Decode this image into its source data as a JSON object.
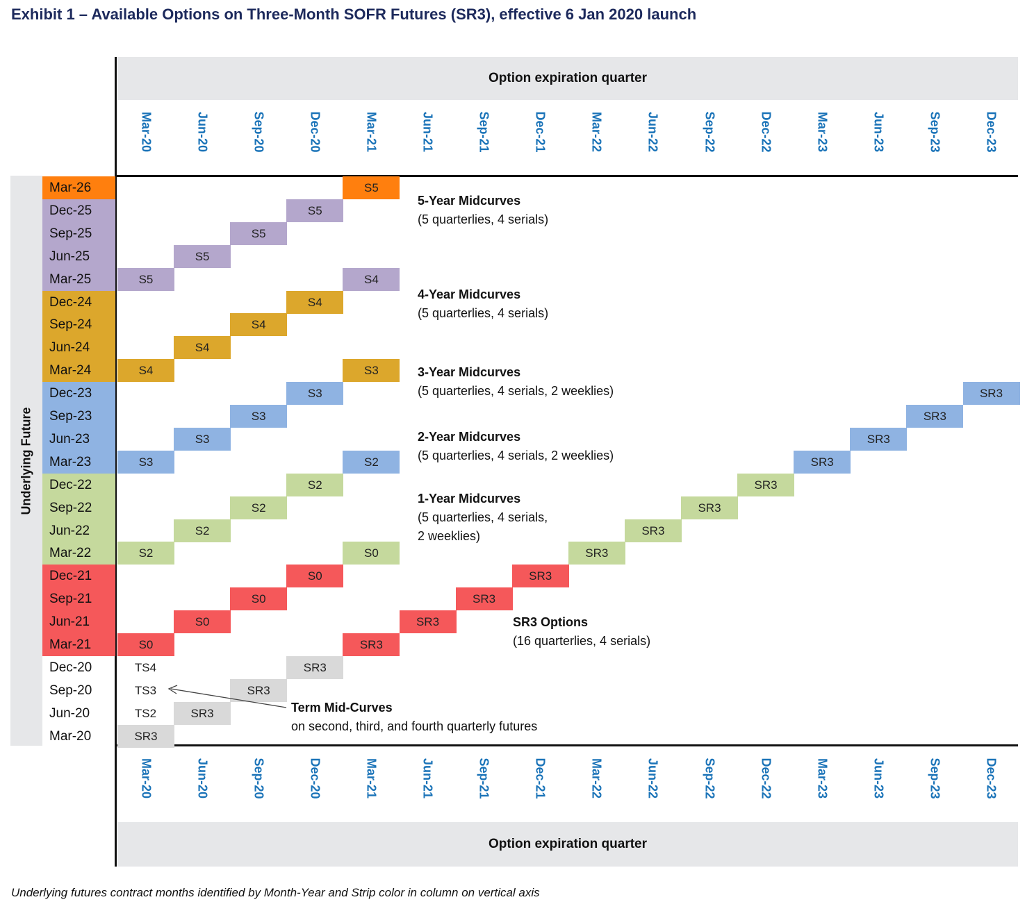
{
  "title": "Exhibit 1 – Available Options on Three-Month SOFR Futures (SR3), effective 6 Jan 2020 launch",
  "x_axis_title": "Option expiration quarter",
  "y_axis_title": "Underlying Future",
  "columns": [
    "Mar-20",
    "Jun-20",
    "Sep-20",
    "Dec-20",
    "Mar-21",
    "Jun-21",
    "Sep-21",
    "Dec-21",
    "Mar-22",
    "Jun-22",
    "Sep-22",
    "Dec-22",
    "Mar-23",
    "Jun-23",
    "Sep-23",
    "Dec-23"
  ],
  "rows": [
    {
      "label": "Mar-26",
      "color": "#ff7f0e"
    },
    {
      "label": "Dec-25",
      "color": "#b4a7cc"
    },
    {
      "label": "Sep-25",
      "color": "#b4a7cc"
    },
    {
      "label": "Jun-25",
      "color": "#b4a7cc"
    },
    {
      "label": "Mar-25",
      "color": "#b4a7cc"
    },
    {
      "label": "Dec-24",
      "color": "#dca72c"
    },
    {
      "label": "Sep-24",
      "color": "#dca72c"
    },
    {
      "label": "Jun-24",
      "color": "#dca72c"
    },
    {
      "label": "Mar-24",
      "color": "#dca72c"
    },
    {
      "label": "Dec-23",
      "color": "#8fb3e2"
    },
    {
      "label": "Sep-23",
      "color": "#8fb3e2"
    },
    {
      "label": "Jun-23",
      "color": "#8fb3e2"
    },
    {
      "label": "Mar-23",
      "color": "#8fb3e2"
    },
    {
      "label": "Dec-22",
      "color": "#c5d99d"
    },
    {
      "label": "Sep-22",
      "color": "#c5d99d"
    },
    {
      "label": "Jun-22",
      "color": "#c5d99d"
    },
    {
      "label": "Mar-22",
      "color": "#c5d99d"
    },
    {
      "label": "Dec-21",
      "color": "#f5585a"
    },
    {
      "label": "Sep-21",
      "color": "#f5585a"
    },
    {
      "label": "Jun-21",
      "color": "#f5585a"
    },
    {
      "label": "Mar-21",
      "color": "#f5585a"
    },
    {
      "label": "Dec-20",
      "color": ""
    },
    {
      "label": "Sep-20",
      "color": ""
    },
    {
      "label": "Jun-20",
      "color": ""
    },
    {
      "label": "Mar-20",
      "color": ""
    }
  ],
  "cells": [
    {
      "row": 0,
      "col": 4,
      "text": "S5"
    },
    {
      "row": 1,
      "col": 3,
      "text": "S5"
    },
    {
      "row": 2,
      "col": 2,
      "text": "S5"
    },
    {
      "row": 3,
      "col": 1,
      "text": "S5"
    },
    {
      "row": 4,
      "col": 0,
      "text": "S5"
    },
    {
      "row": 4,
      "col": 4,
      "text": "S4"
    },
    {
      "row": 5,
      "col": 3,
      "text": "S4"
    },
    {
      "row": 6,
      "col": 2,
      "text": "S4"
    },
    {
      "row": 7,
      "col": 1,
      "text": "S4"
    },
    {
      "row": 8,
      "col": 0,
      "text": "S4"
    },
    {
      "row": 8,
      "col": 4,
      "text": "S3"
    },
    {
      "row": 9,
      "col": 3,
      "text": "S3"
    },
    {
      "row": 10,
      "col": 2,
      "text": "S3"
    },
    {
      "row": 11,
      "col": 1,
      "text": "S3"
    },
    {
      "row": 12,
      "col": 0,
      "text": "S3"
    },
    {
      "row": 12,
      "col": 4,
      "text": "S2"
    },
    {
      "row": 13,
      "col": 3,
      "text": "S2"
    },
    {
      "row": 14,
      "col": 2,
      "text": "S2"
    },
    {
      "row": 15,
      "col": 1,
      "text": "S2"
    },
    {
      "row": 16,
      "col": 0,
      "text": "S2"
    },
    {
      "row": 16,
      "col": 4,
      "text": "S0"
    },
    {
      "row": 17,
      "col": 3,
      "text": "S0"
    },
    {
      "row": 18,
      "col": 2,
      "text": "S0"
    },
    {
      "row": 19,
      "col": 1,
      "text": "S0"
    },
    {
      "row": 20,
      "col": 0,
      "text": "S0"
    },
    {
      "row": 20,
      "col": 4,
      "text": "SR3"
    },
    {
      "row": 21,
      "col": 3,
      "text": "SR3",
      "color": "#d9d9d9"
    },
    {
      "row": 22,
      "col": 2,
      "text": "SR3",
      "color": "#d9d9d9"
    },
    {
      "row": 23,
      "col": 1,
      "text": "SR3",
      "color": "#d9d9d9"
    },
    {
      "row": 24,
      "col": 0,
      "text": "SR3",
      "color": "#d9d9d9"
    },
    {
      "row": 19,
      "col": 5,
      "text": "SR3"
    },
    {
      "row": 18,
      "col": 6,
      "text": "SR3"
    },
    {
      "row": 17,
      "col": 7,
      "text": "SR3"
    },
    {
      "row": 16,
      "col": 8,
      "text": "SR3"
    },
    {
      "row": 15,
      "col": 9,
      "text": "SR3"
    },
    {
      "row": 14,
      "col": 10,
      "text": "SR3"
    },
    {
      "row": 13,
      "col": 11,
      "text": "SR3"
    },
    {
      "row": 12,
      "col": 12,
      "text": "SR3"
    },
    {
      "row": 11,
      "col": 13,
      "text": "SR3"
    },
    {
      "row": 10,
      "col": 14,
      "text": "SR3"
    },
    {
      "row": 9,
      "col": 15,
      "text": "SR3"
    }
  ],
  "term_midcurves": [
    {
      "row": 21,
      "col": 0,
      "text": "TS4"
    },
    {
      "row": 22,
      "col": 0,
      "text": "TS3"
    },
    {
      "row": 23,
      "col": 0,
      "text": "TS2"
    }
  ],
  "annotations": {
    "a5": {
      "title": "5-Year Midcurves",
      "lines": [
        "(5 quarterlies, 4 serials)"
      ]
    },
    "a4": {
      "title": "4-Year Midcurves",
      "lines": [
        "(5 quarterlies, 4 serials)"
      ]
    },
    "a3": {
      "title": "3-Year Midcurves",
      "lines": [
        "(5 quarterlies, 4 serials, 2 weeklies)"
      ]
    },
    "a2": {
      "title": "2-Year Midcurves",
      "lines": [
        "(5 quarterlies, 4 serials, 2 weeklies)"
      ]
    },
    "a1": {
      "title": "1-Year Midcurves",
      "lines": [
        "(5 quarterlies, 4 serials,",
        "2 weeklies)"
      ]
    },
    "asr3": {
      "title": "SR3 Options",
      "lines": [
        "(16 quarterlies, 4 serials)"
      ]
    },
    "aterm": {
      "title": "Term Mid-Curves",
      "lines": [
        "on second, third, and fourth quarterly futures"
      ]
    }
  },
  "footnote": "Underlying futures contract months identified by Month-Year and Strip color in column on vertical axis"
}
